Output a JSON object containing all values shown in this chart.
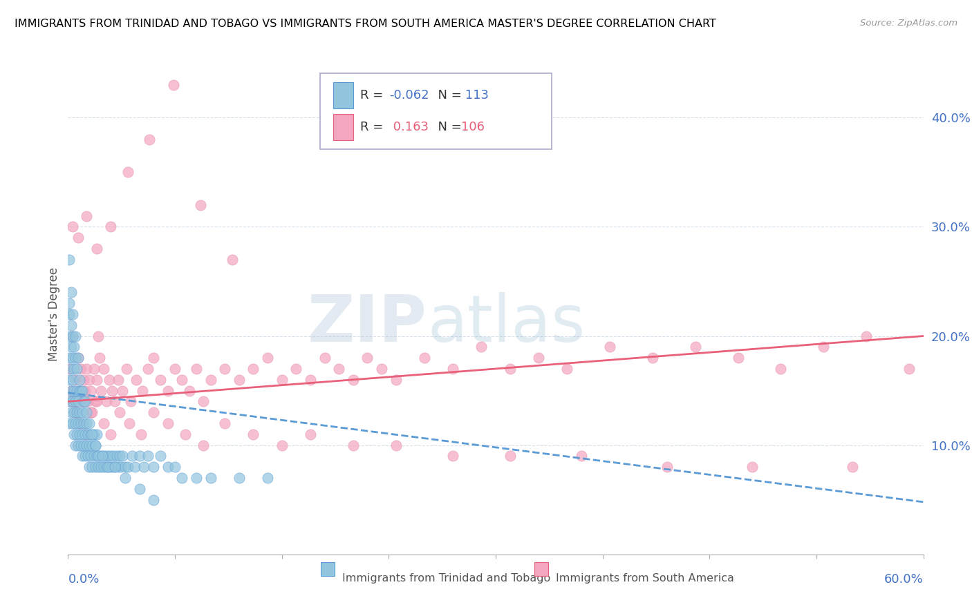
{
  "title": "IMMIGRANTS FROM TRINIDAD AND TOBAGO VS IMMIGRANTS FROM SOUTH AMERICA MASTER'S DEGREE CORRELATION CHART",
  "source": "Source: ZipAtlas.com",
  "ylabel": "Master's Degree",
  "xlim": [
    0.0,
    0.6
  ],
  "ylim": [
    0.0,
    0.44
  ],
  "ytick_vals": [
    0.1,
    0.2,
    0.3,
    0.4
  ],
  "ytick_labels": [
    "10.0%",
    "20.0%",
    "30.0%",
    "40.0%"
  ],
  "color_blue": "#92c5de",
  "color_pink": "#f4a6c0",
  "color_blue_line": "#5b9bd5",
  "color_pink_line": "#e8607a",
  "watermark_zip": "ZIP",
  "watermark_atlas": "atlas",
  "blue_trend_y_start": 0.148,
  "blue_trend_y_end": 0.048,
  "pink_trend_y_start": 0.14,
  "pink_trend_y_end": 0.2,
  "blue_scatter_x": [
    0.001,
    0.001,
    0.001,
    0.001,
    0.001,
    0.002,
    0.002,
    0.002,
    0.002,
    0.003,
    0.003,
    0.003,
    0.003,
    0.004,
    0.004,
    0.004,
    0.004,
    0.005,
    0.005,
    0.005,
    0.006,
    0.006,
    0.006,
    0.007,
    0.007,
    0.007,
    0.008,
    0.008,
    0.008,
    0.009,
    0.009,
    0.01,
    0.01,
    0.01,
    0.011,
    0.011,
    0.012,
    0.012,
    0.013,
    0.013,
    0.014,
    0.014,
    0.015,
    0.015,
    0.016,
    0.016,
    0.017,
    0.017,
    0.018,
    0.018,
    0.019,
    0.019,
    0.02,
    0.02,
    0.021,
    0.022,
    0.023,
    0.024,
    0.025,
    0.026,
    0.027,
    0.028,
    0.029,
    0.03,
    0.031,
    0.032,
    0.033,
    0.034,
    0.035,
    0.036,
    0.037,
    0.038,
    0.04,
    0.042,
    0.045,
    0.047,
    0.05,
    0.053,
    0.056,
    0.06,
    0.065,
    0.07,
    0.075,
    0.08,
    0.09,
    0.1,
    0.12,
    0.14,
    0.001,
    0.001,
    0.001,
    0.002,
    0.002,
    0.003,
    0.003,
    0.004,
    0.005,
    0.005,
    0.006,
    0.007,
    0.008,
    0.009,
    0.01,
    0.011,
    0.012,
    0.013,
    0.015,
    0.017,
    0.019,
    0.021,
    0.024,
    0.028,
    0.033,
    0.04,
    0.05,
    0.06
  ],
  "blue_scatter_y": [
    0.16,
    0.14,
    0.12,
    0.18,
    0.2,
    0.13,
    0.15,
    0.17,
    0.19,
    0.12,
    0.14,
    0.16,
    0.18,
    0.11,
    0.13,
    0.15,
    0.17,
    0.1,
    0.12,
    0.14,
    0.11,
    0.13,
    0.15,
    0.1,
    0.12,
    0.14,
    0.11,
    0.13,
    0.15,
    0.1,
    0.12,
    0.09,
    0.11,
    0.13,
    0.1,
    0.12,
    0.09,
    0.11,
    0.1,
    0.12,
    0.09,
    0.11,
    0.08,
    0.1,
    0.09,
    0.11,
    0.08,
    0.1,
    0.09,
    0.11,
    0.08,
    0.1,
    0.09,
    0.11,
    0.08,
    0.09,
    0.08,
    0.09,
    0.08,
    0.09,
    0.08,
    0.09,
    0.08,
    0.09,
    0.08,
    0.09,
    0.08,
    0.09,
    0.08,
    0.09,
    0.08,
    0.09,
    0.08,
    0.08,
    0.09,
    0.08,
    0.09,
    0.08,
    0.09,
    0.08,
    0.09,
    0.08,
    0.08,
    0.07,
    0.07,
    0.07,
    0.07,
    0.07,
    0.27,
    0.23,
    0.22,
    0.24,
    0.21,
    0.2,
    0.22,
    0.19,
    0.2,
    0.18,
    0.17,
    0.18,
    0.16,
    0.15,
    0.15,
    0.14,
    0.14,
    0.13,
    0.12,
    0.11,
    0.1,
    0.09,
    0.09,
    0.08,
    0.08,
    0.07,
    0.06,
    0.05
  ],
  "pink_scatter_x": [
    0.001,
    0.002,
    0.003,
    0.004,
    0.005,
    0.006,
    0.007,
    0.008,
    0.009,
    0.01,
    0.011,
    0.012,
    0.013,
    0.014,
    0.015,
    0.016,
    0.017,
    0.018,
    0.019,
    0.02,
    0.021,
    0.022,
    0.023,
    0.025,
    0.027,
    0.029,
    0.031,
    0.033,
    0.035,
    0.038,
    0.041,
    0.044,
    0.048,
    0.052,
    0.056,
    0.06,
    0.065,
    0.07,
    0.075,
    0.08,
    0.085,
    0.09,
    0.095,
    0.1,
    0.11,
    0.12,
    0.13,
    0.14,
    0.15,
    0.16,
    0.17,
    0.18,
    0.19,
    0.2,
    0.21,
    0.22,
    0.23,
    0.25,
    0.27,
    0.29,
    0.31,
    0.33,
    0.35,
    0.38,
    0.41,
    0.44,
    0.47,
    0.5,
    0.53,
    0.56,
    0.59,
    0.002,
    0.005,
    0.008,
    0.012,
    0.016,
    0.02,
    0.025,
    0.03,
    0.036,
    0.043,
    0.051,
    0.06,
    0.07,
    0.082,
    0.095,
    0.11,
    0.13,
    0.15,
    0.17,
    0.2,
    0.23,
    0.27,
    0.31,
    0.36,
    0.42,
    0.48,
    0.55,
    0.003,
    0.007,
    0.013,
    0.02,
    0.03,
    0.042,
    0.057,
    0.074,
    0.093,
    0.115
  ],
  "pink_scatter_y": [
    0.17,
    0.15,
    0.2,
    0.14,
    0.16,
    0.13,
    0.18,
    0.15,
    0.17,
    0.14,
    0.16,
    0.15,
    0.17,
    0.14,
    0.16,
    0.15,
    0.13,
    0.17,
    0.14,
    0.16,
    0.2,
    0.18,
    0.15,
    0.17,
    0.14,
    0.16,
    0.15,
    0.14,
    0.16,
    0.15,
    0.17,
    0.14,
    0.16,
    0.15,
    0.17,
    0.18,
    0.16,
    0.15,
    0.17,
    0.16,
    0.15,
    0.17,
    0.14,
    0.16,
    0.17,
    0.16,
    0.17,
    0.18,
    0.16,
    0.17,
    0.16,
    0.18,
    0.17,
    0.16,
    0.18,
    0.17,
    0.16,
    0.18,
    0.17,
    0.19,
    0.17,
    0.18,
    0.17,
    0.19,
    0.18,
    0.19,
    0.18,
    0.17,
    0.19,
    0.2,
    0.17,
    0.14,
    0.13,
    0.12,
    0.11,
    0.13,
    0.14,
    0.12,
    0.11,
    0.13,
    0.12,
    0.11,
    0.13,
    0.12,
    0.11,
    0.1,
    0.12,
    0.11,
    0.1,
    0.11,
    0.1,
    0.1,
    0.09,
    0.09,
    0.09,
    0.08,
    0.08,
    0.08,
    0.3,
    0.29,
    0.31,
    0.28,
    0.3,
    0.35,
    0.38,
    0.43,
    0.32,
    0.27
  ]
}
